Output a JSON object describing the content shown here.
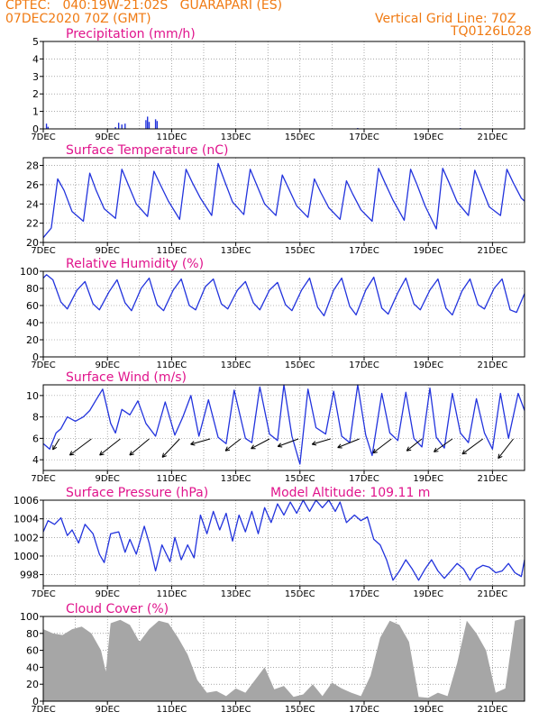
{
  "header": {
    "line1": "CPTEC:   040:19W-21:02S   GUARAPARI (ES)",
    "line2": "07DEC2020 70Z (GMT)",
    "grid_note": "Vertical Grid Line: 70Z",
    "code": "TQ0126L028"
  },
  "colors": {
    "header": "#f07a12",
    "title": "#e0148c",
    "line": "#2233dd",
    "cloud": "#a6a6a6",
    "grid": "#777777"
  },
  "chart_data": [
    {
      "type": "bar",
      "title": "Precipitation (mm/h)",
      "ylim": [
        0,
        5
      ],
      "yticks": [
        "0",
        "1",
        "2",
        "3",
        "4",
        "5"
      ],
      "xticks": [
        "7DEC",
        "9DEC",
        "11DEC",
        "13DEC",
        "15DEC",
        "17DEC",
        "19DEC",
        "21DEC"
      ],
      "xlim_days": [
        0,
        15
      ],
      "series": [
        {
          "name": "precipitation",
          "points": [
            [
              0.1,
              0.3
            ],
            [
              0.15,
              0.12
            ],
            [
              2.25,
              0.1
            ],
            [
              2.35,
              0.35
            ],
            [
              2.45,
              0.25
            ],
            [
              2.55,
              0.3
            ],
            [
              3.2,
              0.5
            ],
            [
              3.25,
              0.7
            ],
            [
              3.3,
              0.4
            ],
            [
              3.5,
              0.55
            ],
            [
              3.55,
              0.45
            ],
            [
              9.8,
              0.05
            ],
            [
              13.0,
              0.05
            ]
          ]
        }
      ]
    },
    {
      "type": "line",
      "title": "Surface Temperature (nC)",
      "ylim": [
        20,
        28.8
      ],
      "yticks": [
        "20",
        "22",
        "24",
        "26",
        "28"
      ],
      "xticks": [
        "7DEC",
        "9DEC",
        "11DEC",
        "13DEC",
        "15DEC",
        "17DEC",
        "19DEC",
        "21DEC"
      ],
      "xlim_days": [
        0,
        15
      ],
      "series": [
        {
          "name": "temperature",
          "x": [
            0,
            0.25,
            0.45,
            0.65,
            0.9,
            1.25,
            1.45,
            1.65,
            1.9,
            2.25,
            2.45,
            2.65,
            2.9,
            3.25,
            3.45,
            3.65,
            3.9,
            4.25,
            4.45,
            4.65,
            4.9,
            5.25,
            5.45,
            5.65,
            5.9,
            6.25,
            6.45,
            6.65,
            6.9,
            7.25,
            7.45,
            7.65,
            7.9,
            8.25,
            8.45,
            8.65,
            8.9,
            9.25,
            9.45,
            9.65,
            9.9,
            10.25,
            10.45,
            10.65,
            10.9,
            11.25,
            11.45,
            11.65,
            11.9,
            12.25,
            12.45,
            12.65,
            12.9,
            13.25,
            13.45,
            13.65,
            13.9,
            14.25,
            14.45,
            14.65,
            14.9,
            15
          ],
          "values": [
            20.5,
            21.5,
            26.6,
            25.4,
            23.2,
            22.2,
            27.2,
            25.4,
            23.5,
            22.5,
            27.6,
            26.0,
            24.0,
            22.7,
            27.4,
            26.0,
            24.3,
            22.4,
            27.6,
            26.2,
            24.6,
            22.8,
            28.2,
            26.4,
            24.2,
            22.9,
            27.6,
            26.0,
            24.0,
            22.8,
            27.0,
            25.6,
            23.8,
            22.6,
            26.6,
            25.2,
            23.6,
            22.4,
            26.4,
            25.0,
            23.4,
            22.2,
            27.7,
            26.2,
            24.4,
            22.3,
            27.6,
            26.0,
            23.8,
            21.4,
            27.7,
            26.2,
            24.2,
            22.8,
            27.5,
            25.8,
            23.7,
            22.8,
            27.6,
            26.2,
            24.6,
            24.3
          ]
        }
      ]
    },
    {
      "type": "line",
      "title": "Relative Humidity (%)",
      "ylim": [
        0,
        100
      ],
      "yticks": [
        "0",
        "20",
        "40",
        "60",
        "80",
        "100"
      ],
      "xticks": [
        "7DEC",
        "9DEC",
        "11DEC",
        "13DEC",
        "15DEC",
        "17DEC",
        "19DEC",
        "21DEC"
      ],
      "xlim_days": [
        0,
        15
      ],
      "series": [
        {
          "name": "humidity",
          "x": [
            0,
            0.1,
            0.3,
            0.55,
            0.75,
            1.05,
            1.3,
            1.55,
            1.75,
            2.05,
            2.3,
            2.55,
            2.75,
            3.05,
            3.3,
            3.55,
            3.75,
            4.05,
            4.3,
            4.55,
            4.75,
            5.05,
            5.3,
            5.55,
            5.75,
            6.05,
            6.3,
            6.55,
            6.75,
            7.05,
            7.3,
            7.55,
            7.75,
            8.05,
            8.3,
            8.55,
            8.75,
            9.05,
            9.3,
            9.55,
            9.75,
            10.05,
            10.3,
            10.55,
            10.75,
            11.05,
            11.3,
            11.55,
            11.75,
            12.05,
            12.3,
            12.55,
            12.75,
            13.05,
            13.3,
            13.55,
            13.75,
            14.05,
            14.3,
            14.55,
            14.75,
            15
          ],
          "values": [
            92,
            96,
            90,
            64,
            56,
            78,
            88,
            62,
            55,
            76,
            90,
            63,
            54,
            80,
            92,
            61,
            54,
            78,
            91,
            60,
            55,
            82,
            91,
            62,
            56,
            78,
            88,
            63,
            55,
            78,
            87,
            61,
            54,
            78,
            92,
            58,
            48,
            78,
            92,
            59,
            49,
            78,
            93,
            57,
            50,
            75,
            92,
            62,
            55,
            78,
            91,
            57,
            49,
            77,
            91,
            61,
            56,
            80,
            91,
            55,
            52,
            74
          ]
        }
      ]
    },
    {
      "type": "line",
      "title": "Surface Wind (m/s)",
      "ylim": [
        3,
        11
      ],
      "yticks": [
        "4",
        "6",
        "8",
        "10"
      ],
      "xticks": [
        "7DEC",
        "9DEC",
        "11DEC",
        "13DEC",
        "15DEC",
        "17DEC",
        "19DEC",
        "21DEC"
      ],
      "xlim_days": [
        0,
        15
      ],
      "series": [
        {
          "name": "wind_speed",
          "x": [
            0,
            0.2,
            0.4,
            0.55,
            0.75,
            1.0,
            1.25,
            1.45,
            1.65,
            1.85,
            2.1,
            2.25,
            2.45,
            2.7,
            2.95,
            3.2,
            3.5,
            3.8,
            4.1,
            4.35,
            4.6,
            4.85,
            5.15,
            5.45,
            5.7,
            5.95,
            6.3,
            6.5,
            6.75,
            7.05,
            7.3,
            7.5,
            7.75,
            8.0,
            8.25,
            8.5,
            8.8,
            9.05,
            9.3,
            9.55,
            9.8,
            10.05,
            10.25,
            10.55,
            10.8,
            11.05,
            11.3,
            11.55,
            11.8,
            12.05,
            12.25,
            12.5,
            12.75,
            13.0,
            13.25,
            13.5,
            13.75,
            14.0,
            14.25,
            14.5,
            14.8,
            15
          ],
          "values": [
            5.5,
            5.0,
            6.5,
            6.9,
            8.0,
            7.6,
            8.0,
            8.6,
            9.6,
            10.6,
            7.4,
            6.5,
            8.7,
            8.2,
            9.5,
            7.4,
            6.2,
            9.4,
            6.3,
            8.0,
            10.0,
            6.2,
            9.6,
            6.1,
            5.5,
            10.5,
            6.0,
            5.6,
            10.8,
            6.4,
            5.8,
            11.0,
            6.2,
            3.6,
            10.6,
            7.0,
            6.4,
            10.4,
            6.2,
            5.6,
            11.0,
            6.3,
            4.4,
            10.2,
            6.5,
            5.8,
            10.3,
            6.0,
            5.2,
            10.7,
            6.1,
            5.1,
            10.2,
            6.5,
            5.6,
            9.7,
            6.5,
            5.0,
            10.2,
            6.0,
            10.2,
            8.6
          ]
        },
        {
          "name": "wind_vectors",
          "x": [
            0.5,
            1.5,
            2.4,
            3.3,
            4.25,
            5.2,
            6.15,
            7.05,
            7.95,
            8.95,
            9.85,
            10.85,
            11.8,
            12.75,
            13.7,
            14.65
          ],
          "u": [
            -1.2,
            -4,
            -3.8,
            -3.6,
            -3.2,
            -3.6,
            -2.8,
            -3.4,
            -3.8,
            -3.4,
            -4,
            -3.4,
            -2.8,
            -3.4,
            -3.8,
            -2.8
          ],
          "v": [
            -2,
            -3,
            -3,
            -3,
            -3.4,
            -1,
            -2.2,
            -1.8,
            -1.4,
            -1,
            -1.6,
            -2.6,
            -2.2,
            -2.4,
            -2.8,
            -3.6
          ]
        }
      ]
    },
    {
      "type": "line",
      "title": "Surface Pressure (hPa)",
      "subtitle": "Model Altitude: 109.11 m",
      "ylim": [
        996.8,
        1006
      ],
      "yticks": [
        "998",
        "1000",
        "1002",
        "1004",
        "1006"
      ],
      "xticks": [
        "7DEC",
        "9DEC",
        "11DEC",
        "13DEC",
        "15DEC",
        "17DEC",
        "19DEC",
        "21DEC"
      ],
      "xlim_days": [
        0,
        15
      ],
      "series": [
        {
          "name": "pressure",
          "x": [
            0,
            0.15,
            0.35,
            0.55,
            0.75,
            0.9,
            1.1,
            1.3,
            1.55,
            1.75,
            1.9,
            2.1,
            2.35,
            2.55,
            2.7,
            2.9,
            3.15,
            3.3,
            3.5,
            3.7,
            3.95,
            4.1,
            4.3,
            4.5,
            4.7,
            4.9,
            5.1,
            5.3,
            5.5,
            5.7,
            5.9,
            6.1,
            6.3,
            6.5,
            6.7,
            6.9,
            7.1,
            7.3,
            7.5,
            7.7,
            7.9,
            8.1,
            8.3,
            8.5,
            8.7,
            8.9,
            9.1,
            9.25,
            9.45,
            9.7,
            9.9,
            10.1,
            10.3,
            10.5,
            10.7,
            10.9,
            11.1,
            11.3,
            11.5,
            11.7,
            11.9,
            12.1,
            12.3,
            12.5,
            12.7,
            12.9,
            13.1,
            13.3,
            13.5,
            13.7,
            13.9,
            14.1,
            14.3,
            14.5,
            14.7,
            14.9,
            15
          ],
          "values": [
            1002.6,
            1003.8,
            1003.4,
            1004.1,
            1002.2,
            1002.8,
            1001.4,
            1003.4,
            1002.4,
            1000.2,
            999.3,
            1002.4,
            1002.6,
            1000.4,
            1001.8,
            1000.2,
            1003.2,
            1001.4,
            998.4,
            1001.2,
            999.4,
            1002.0,
            999.6,
            1001.2,
            999.8,
            1004.4,
            1002.4,
            1004.8,
            1002.8,
            1004.6,
            1001.6,
            1004.4,
            1002.6,
            1004.8,
            1002.4,
            1005.2,
            1003.6,
            1005.6,
            1004.4,
            1005.8,
            1004.6,
            1006.0,
            1004.8,
            1006.0,
            1005.2,
            1006.0,
            1004.8,
            1005.8,
            1003.6,
            1004.4,
            1003.8,
            1004.2,
            1001.8,
            1001.2,
            999.6,
            997.4,
            998.4,
            999.6,
            998.6,
            997.4,
            998.6,
            999.6,
            998.4,
            997.6,
            998.4,
            999.2,
            998.6,
            997.4,
            998.6,
            999.0,
            998.8,
            998.2,
            998.4,
            999.2,
            998.2,
            997.8,
            999.6
          ]
        }
      ]
    },
    {
      "type": "area",
      "title": "Cloud Cover (%)",
      "ylim": [
        0,
        100
      ],
      "yticks": [
        "0",
        "20",
        "40",
        "60",
        "80",
        "100"
      ],
      "xticks": [
        "7DEC",
        "9DEC",
        "11DEC",
        "13DEC",
        "15DEC",
        "17DEC",
        "19DEC",
        "21DEC"
      ],
      "xlim_days": [
        0,
        15
      ],
      "series": [
        {
          "name": "cloud_cover",
          "x": [
            0,
            0.3,
            0.6,
            0.9,
            1.2,
            1.5,
            1.8,
            1.95,
            2.1,
            2.4,
            2.7,
            3.0,
            3.3,
            3.6,
            3.9,
            4.2,
            4.5,
            4.8,
            5.1,
            5.4,
            5.7,
            6.0,
            6.3,
            6.6,
            6.9,
            7.2,
            7.5,
            7.8,
            8.1,
            8.4,
            8.7,
            9.0,
            9.3,
            9.6,
            9.9,
            10.2,
            10.5,
            10.8,
            11.1,
            11.4,
            11.7,
            12.0,
            12.3,
            12.6,
            12.9,
            13.2,
            13.5,
            13.8,
            14.1,
            14.4,
            14.7,
            15
          ],
          "values": [
            85,
            80,
            78,
            85,
            88,
            80,
            60,
            35,
            92,
            96,
            90,
            70,
            85,
            95,
            92,
            75,
            55,
            25,
            10,
            12,
            6,
            15,
            10,
            25,
            40,
            14,
            18,
            5,
            8,
            20,
            6,
            22,
            15,
            10,
            6,
            30,
            75,
            95,
            90,
            70,
            5,
            4,
            10,
            6,
            45,
            95,
            80,
            60,
            10,
            15,
            95,
            98
          ]
        }
      ]
    }
  ]
}
